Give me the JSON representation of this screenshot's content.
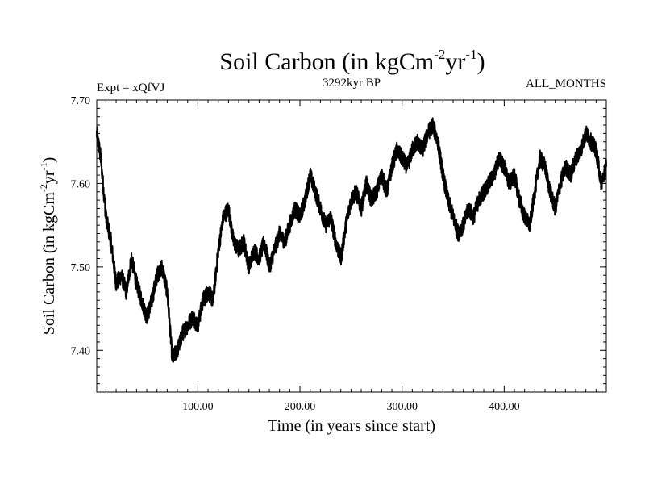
{
  "chart_data": {
    "type": "line",
    "title": {
      "main": "Soil Carbon (in kgCm",
      "exp1": "-2",
      "mid": "yr",
      "exp2": "-1",
      "end": ")"
    },
    "subtitle_left": "Expt = xQfVJ",
    "subtitle_center": "3292kyr BP",
    "subtitle_right": "ALL_MONTHS",
    "xlabel": "Time (in years since start)",
    "ylabel": {
      "main": "Soil Carbon (in kgCm",
      "exp1": "-2",
      "mid": "yr",
      "exp2": "-1",
      "end": ")"
    },
    "xlim": [
      1,
      500
    ],
    "ylim": [
      7.35,
      7.7
    ],
    "xticks": [
      100,
      200,
      300,
      400
    ],
    "xtick_labels": [
      "100.00",
      "200.00",
      "300.00",
      "400.00"
    ],
    "yticks": [
      7.4,
      7.5,
      7.6,
      7.7
    ],
    "ytick_labels": [
      "7.40",
      "7.50",
      "7.60",
      "7.70"
    ],
    "grid": false,
    "line_color": "#000000",
    "series": [
      {
        "name": "Soil Carbon",
        "x": [
          1,
          5,
          10,
          15,
          20,
          25,
          30,
          35,
          40,
          45,
          50,
          55,
          60,
          65,
          70,
          75,
          80,
          85,
          90,
          95,
          100,
          105,
          110,
          115,
          120,
          125,
          130,
          135,
          140,
          145,
          150,
          155,
          160,
          165,
          170,
          175,
          180,
          185,
          190,
          195,
          200,
          205,
          210,
          215,
          220,
          225,
          230,
          235,
          240,
          245,
          250,
          255,
          260,
          265,
          270,
          275,
          280,
          285,
          290,
          295,
          300,
          305,
          310,
          315,
          320,
          325,
          330,
          335,
          340,
          345,
          350,
          355,
          360,
          365,
          370,
          375,
          380,
          385,
          390,
          395,
          400,
          405,
          410,
          415,
          420,
          425,
          430,
          435,
          440,
          445,
          450,
          455,
          460,
          465,
          470,
          475,
          480,
          485,
          490,
          495,
          500
        ],
        "values": [
          7.66,
          7.63,
          7.56,
          7.53,
          7.48,
          7.49,
          7.47,
          7.51,
          7.48,
          7.46,
          7.44,
          7.46,
          7.49,
          7.5,
          7.47,
          7.39,
          7.4,
          7.42,
          7.43,
          7.44,
          7.43,
          7.46,
          7.47,
          7.46,
          7.52,
          7.56,
          7.57,
          7.53,
          7.52,
          7.53,
          7.5,
          7.52,
          7.51,
          7.53,
          7.5,
          7.52,
          7.54,
          7.53,
          7.55,
          7.57,
          7.56,
          7.58,
          7.61,
          7.59,
          7.57,
          7.55,
          7.56,
          7.53,
          7.51,
          7.55,
          7.58,
          7.59,
          7.57,
          7.6,
          7.58,
          7.59,
          7.61,
          7.59,
          7.62,
          7.64,
          7.63,
          7.62,
          7.64,
          7.65,
          7.64,
          7.66,
          7.67,
          7.65,
          7.61,
          7.58,
          7.56,
          7.54,
          7.55,
          7.57,
          7.56,
          7.58,
          7.59,
          7.6,
          7.61,
          7.63,
          7.62,
          7.6,
          7.61,
          7.58,
          7.56,
          7.55,
          7.59,
          7.63,
          7.62,
          7.59,
          7.57,
          7.6,
          7.62,
          7.61,
          7.63,
          7.64,
          7.66,
          7.65,
          7.64,
          7.6,
          7.62
        ]
      }
    ]
  }
}
